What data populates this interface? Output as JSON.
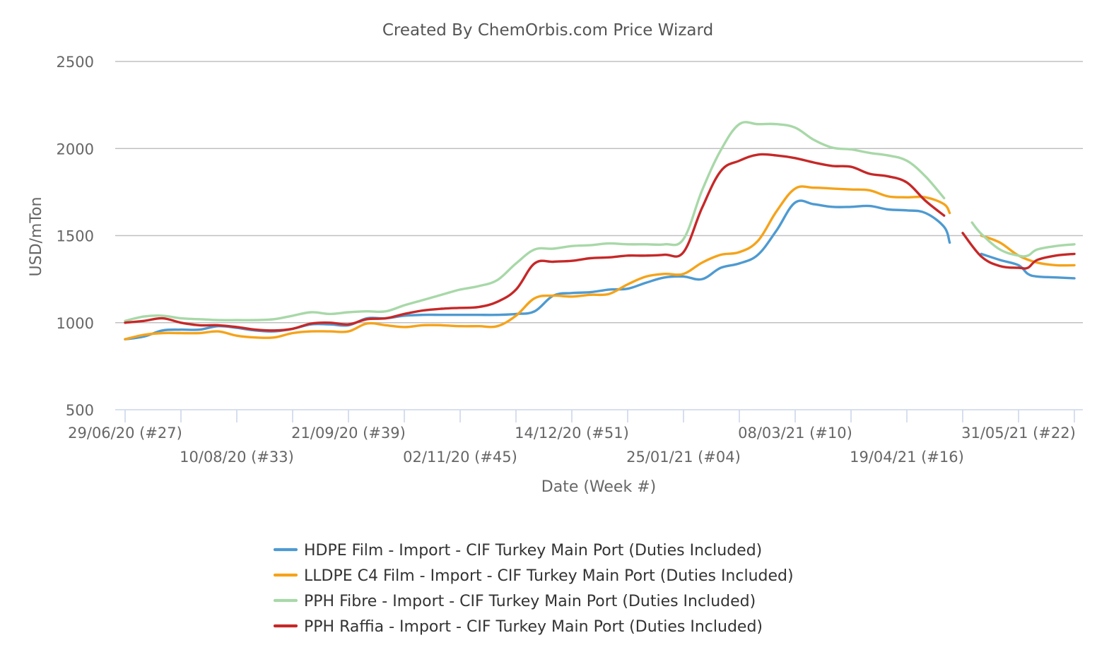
{
  "chart_data": {
    "type": "line",
    "title": "Created By ChemOrbis.com Price Wizard",
    "xlabel": "Date (Week #)",
    "ylabel": "USD/mTon",
    "ylim": [
      500,
      2500
    ],
    "yticks": [
      500,
      1000,
      1500,
      2000,
      2500
    ],
    "grid": true,
    "legend_position": "bottom-center",
    "x_ticks": [
      {
        "week": 0,
        "label": "29/06/20 (#27)"
      },
      {
        "week": 6,
        "label": "10/08/20 (#33)"
      },
      {
        "week": 12,
        "label": "21/09/20 (#39)"
      },
      {
        "week": 18,
        "label": "02/11/20 (#45)"
      },
      {
        "week": 24,
        "label": "14/12/20 (#51)"
      },
      {
        "week": 30,
        "label": "25/01/21 (#04)"
      },
      {
        "week": 36,
        "label": "08/03/21 (#10)"
      },
      {
        "week": 42,
        "label": "19/04/21 (#16)"
      },
      {
        "week": 48,
        "label": "31/05/21 (#22)"
      }
    ],
    "series": [
      {
        "name": "HDPE Film - Import - CIF Turkey Main Port (Duties Included)",
        "color": "#4e9ad1",
        "points": [
          [
            0,
            905
          ],
          [
            1,
            920
          ],
          [
            2,
            955
          ],
          [
            3,
            960
          ],
          [
            4,
            960
          ],
          [
            5,
            980
          ],
          [
            6,
            970
          ],
          [
            7,
            955
          ],
          [
            8,
            950
          ],
          [
            9,
            965
          ],
          [
            10,
            990
          ],
          [
            11,
            990
          ],
          [
            12,
            985
          ],
          [
            13,
            1025
          ],
          [
            14,
            1025
          ],
          [
            15,
            1040
          ],
          [
            16,
            1045
          ],
          [
            17,
            1045
          ],
          [
            18,
            1045
          ],
          [
            19,
            1045
          ],
          [
            20,
            1045
          ],
          [
            21,
            1050
          ],
          [
            22,
            1065
          ],
          [
            23,
            1155
          ],
          [
            24,
            1170
          ],
          [
            25,
            1175
          ],
          [
            26,
            1190
          ],
          [
            27,
            1195
          ],
          [
            28,
            1230
          ],
          [
            29,
            1260
          ],
          [
            30,
            1265
          ],
          [
            31,
            1250
          ],
          [
            32,
            1315
          ],
          [
            33,
            1340
          ],
          [
            34,
            1390
          ],
          [
            35,
            1530
          ],
          [
            36,
            1690
          ],
          [
            37,
            1680
          ],
          [
            38,
            1665
          ],
          [
            39,
            1665
          ],
          [
            40,
            1670
          ],
          [
            41,
            1650
          ],
          [
            42,
            1645
          ],
          [
            43,
            1630
          ],
          [
            44,
            1550
          ],
          [
            44.3,
            1460
          ],
          null,
          [
            46,
            1395
          ],
          [
            47,
            1360
          ],
          [
            48,
            1330
          ],
          [
            48.5,
            1280
          ],
          [
            49,
            1265
          ],
          [
            50,
            1260
          ],
          [
            51,
            1255
          ]
        ]
      },
      {
        "name": "LLDPE C4 Film - Import - CIF Turkey Main Port (Duties Included)",
        "color": "#f5a31a",
        "points": [
          [
            0,
            905
          ],
          [
            1,
            930
          ],
          [
            2,
            940
          ],
          [
            3,
            940
          ],
          [
            4,
            940
          ],
          [
            5,
            950
          ],
          [
            6,
            925
          ],
          [
            7,
            915
          ],
          [
            8,
            915
          ],
          [
            9,
            940
          ],
          [
            10,
            950
          ],
          [
            11,
            950
          ],
          [
            12,
            950
          ],
          [
            13,
            995
          ],
          [
            14,
            985
          ],
          [
            15,
            975
          ],
          [
            16,
            985
          ],
          [
            17,
            985
          ],
          [
            18,
            980
          ],
          [
            19,
            980
          ],
          [
            20,
            980
          ],
          [
            21,
            1040
          ],
          [
            22,
            1140
          ],
          [
            23,
            1155
          ],
          [
            24,
            1150
          ],
          [
            25,
            1160
          ],
          [
            26,
            1165
          ],
          [
            27,
            1220
          ],
          [
            28,
            1265
          ],
          [
            29,
            1280
          ],
          [
            30,
            1280
          ],
          [
            31,
            1345
          ],
          [
            32,
            1390
          ],
          [
            33,
            1405
          ],
          [
            34,
            1470
          ],
          [
            35,
            1640
          ],
          [
            36,
            1770
          ],
          [
            37,
            1775
          ],
          [
            38,
            1770
          ],
          [
            39,
            1765
          ],
          [
            40,
            1760
          ],
          [
            41,
            1725
          ],
          [
            42,
            1720
          ],
          [
            43,
            1720
          ],
          [
            44,
            1680
          ],
          [
            44.3,
            1630
          ],
          null,
          [
            46,
            1500
          ],
          [
            47,
            1460
          ],
          [
            48,
            1385
          ],
          [
            49,
            1345
          ],
          [
            50,
            1330
          ],
          [
            51,
            1330
          ]
        ]
      },
      {
        "name": "PPH Fibre - Import - CIF Turkey Main Port (Duties Included)",
        "color": "#a8d8a8",
        "points": [
          [
            0,
            1010
          ],
          [
            1,
            1035
          ],
          [
            2,
            1040
          ],
          [
            3,
            1025
          ],
          [
            4,
            1020
          ],
          [
            5,
            1015
          ],
          [
            6,
            1015
          ],
          [
            7,
            1015
          ],
          [
            8,
            1020
          ],
          [
            9,
            1040
          ],
          [
            10,
            1060
          ],
          [
            11,
            1050
          ],
          [
            12,
            1060
          ],
          [
            13,
            1065
          ],
          [
            14,
            1065
          ],
          [
            15,
            1100
          ],
          [
            16,
            1130
          ],
          [
            17,
            1160
          ],
          [
            18,
            1190
          ],
          [
            19,
            1210
          ],
          [
            20,
            1245
          ],
          [
            21,
            1340
          ],
          [
            22,
            1420
          ],
          [
            23,
            1425
          ],
          [
            24,
            1440
          ],
          [
            25,
            1445
          ],
          [
            26,
            1455
          ],
          [
            27,
            1450
          ],
          [
            28,
            1450
          ],
          [
            29,
            1450
          ],
          [
            30,
            1480
          ],
          [
            31,
            1760
          ],
          [
            32,
            1990
          ],
          [
            33,
            2140
          ],
          [
            34,
            2140
          ],
          [
            35,
            2140
          ],
          [
            36,
            2120
          ],
          [
            37,
            2050
          ],
          [
            38,
            2005
          ],
          [
            39,
            1995
          ],
          [
            40,
            1975
          ],
          [
            41,
            1960
          ],
          [
            42,
            1930
          ],
          [
            43,
            1840
          ],
          [
            44,
            1715
          ],
          null,
          [
            45.5,
            1575
          ],
          [
            46,
            1510
          ],
          [
            47,
            1420
          ],
          [
            48,
            1385
          ],
          [
            48.5,
            1385
          ],
          [
            49,
            1420
          ],
          [
            50,
            1440
          ],
          [
            51,
            1450
          ]
        ]
      },
      {
        "name": "PPH Raffia - Import - CIF Turkey Main Port (Duties Included)",
        "color": "#c62828",
        "points": [
          [
            0,
            1000
          ],
          [
            1,
            1010
          ],
          [
            2,
            1025
          ],
          [
            3,
            1000
          ],
          [
            4,
            985
          ],
          [
            5,
            985
          ],
          [
            6,
            975
          ],
          [
            7,
            960
          ],
          [
            8,
            955
          ],
          [
            9,
            965
          ],
          [
            10,
            995
          ],
          [
            11,
            1000
          ],
          [
            12,
            990
          ],
          [
            13,
            1020
          ],
          [
            14,
            1025
          ],
          [
            15,
            1050
          ],
          [
            16,
            1070
          ],
          [
            17,
            1080
          ],
          [
            18,
            1085
          ],
          [
            19,
            1090
          ],
          [
            20,
            1120
          ],
          [
            21,
            1190
          ],
          [
            22,
            1340
          ],
          [
            23,
            1350
          ],
          [
            24,
            1355
          ],
          [
            25,
            1370
          ],
          [
            26,
            1375
          ],
          [
            27,
            1385
          ],
          [
            28,
            1385
          ],
          [
            29,
            1390
          ],
          [
            30,
            1405
          ],
          [
            31,
            1660
          ],
          [
            32,
            1870
          ],
          [
            33,
            1930
          ],
          [
            34,
            1965
          ],
          [
            35,
            1960
          ],
          [
            36,
            1945
          ],
          [
            37,
            1920
          ],
          [
            38,
            1900
          ],
          [
            39,
            1895
          ],
          [
            40,
            1855
          ],
          [
            41,
            1840
          ],
          [
            42,
            1805
          ],
          [
            43,
            1700
          ],
          [
            44,
            1615
          ],
          null,
          [
            45,
            1515
          ],
          [
            46,
            1380
          ],
          [
            47,
            1325
          ],
          [
            48,
            1315
          ],
          [
            48.5,
            1315
          ],
          [
            49,
            1360
          ],
          [
            50,
            1385
          ],
          [
            51,
            1395
          ]
        ]
      }
    ]
  }
}
